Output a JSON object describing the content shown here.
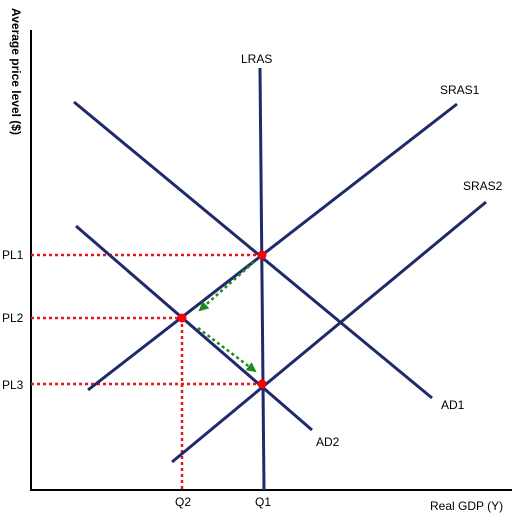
{
  "axes": {
    "y_label": "Average price level ($)",
    "x_label": "Real GDP (Y)"
  },
  "curves": {
    "lras": "LRAS",
    "sras1": "SRAS1",
    "sras2": "SRAS2",
    "ad1": "AD1",
    "ad2": "AD2"
  },
  "price_levels": {
    "pl1": "PL1",
    "pl2": "PL2",
    "pl3": "PL3"
  },
  "quantities": {
    "q1": "Q1",
    "q2": "Q2"
  },
  "colors": {
    "curve": "#1f2a6b",
    "axis": "#000000",
    "dashed_guide": "#e8141e",
    "equilibrium_point": "#ff0000",
    "transition_arrow": "#1f8a1f"
  }
}
